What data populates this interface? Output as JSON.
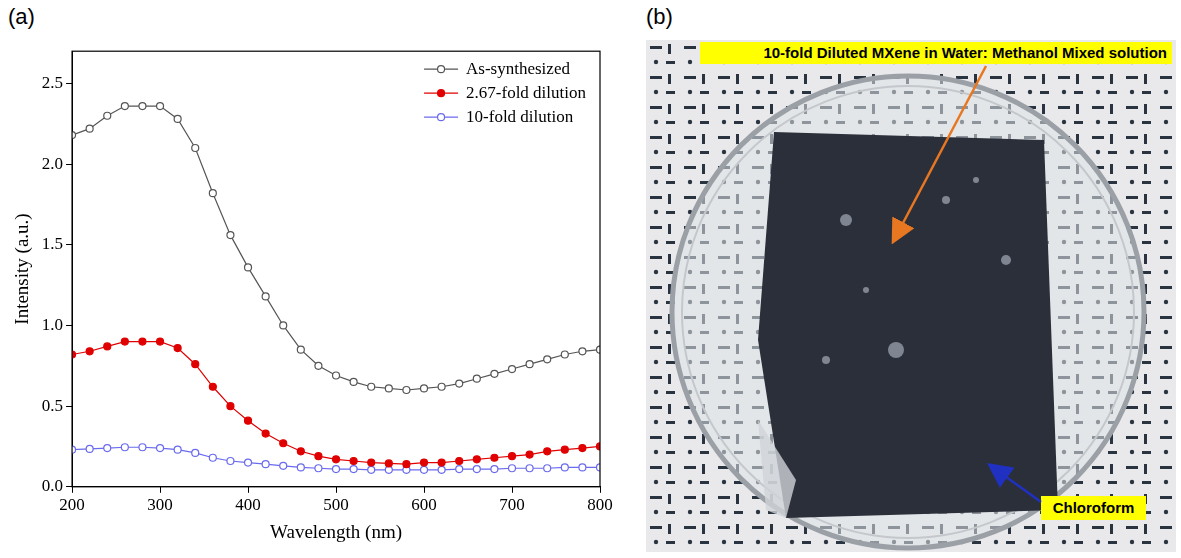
{
  "panel_labels": [
    "(a)",
    "(b)"
  ],
  "chart_data": {
    "type": "line",
    "x_label": "Wavelength (nm)",
    "y_label": "Intensity (a.u.)",
    "x": [
      200,
      220,
      240,
      260,
      280,
      300,
      320,
      340,
      360,
      380,
      400,
      420,
      440,
      460,
      480,
      500,
      520,
      540,
      560,
      580,
      600,
      620,
      640,
      660,
      680,
      700,
      720,
      740,
      760,
      780,
      800
    ],
    "series": [
      {
        "name": "As-synthesized",
        "color": "#555555",
        "marker": "open_circle",
        "values": [
          2.18,
          2.22,
          2.3,
          2.36,
          2.36,
          2.36,
          2.28,
          2.1,
          1.82,
          1.56,
          1.36,
          1.18,
          1.0,
          0.85,
          0.75,
          0.69,
          0.65,
          0.62,
          0.61,
          0.6,
          0.61,
          0.62,
          0.64,
          0.67,
          0.7,
          0.73,
          0.76,
          0.79,
          0.82,
          0.84,
          0.85
        ]
      },
      {
        "name": "2.67-fold dilution",
        "color": "#e00000",
        "marker": "filled_circle",
        "values": [
          0.82,
          0.84,
          0.87,
          0.9,
          0.9,
          0.9,
          0.86,
          0.76,
          0.62,
          0.5,
          0.41,
          0.33,
          0.27,
          0.22,
          0.19,
          0.17,
          0.16,
          0.15,
          0.145,
          0.14,
          0.15,
          0.15,
          0.16,
          0.17,
          0.18,
          0.19,
          0.2,
          0.22,
          0.23,
          0.24,
          0.25
        ]
      },
      {
        "name": "10-fold dilution",
        "color": "#6a6aee",
        "marker": "open_circle",
        "values": [
          0.23,
          0.235,
          0.24,
          0.245,
          0.245,
          0.24,
          0.23,
          0.21,
          0.18,
          0.16,
          0.15,
          0.14,
          0.13,
          0.12,
          0.115,
          0.11,
          0.11,
          0.105,
          0.105,
          0.105,
          0.105,
          0.105,
          0.11,
          0.11,
          0.11,
          0.115,
          0.115,
          0.115,
          0.12,
          0.12,
          0.12
        ]
      }
    ],
    "xlim": [
      200,
      800
    ],
    "xticks": [
      200,
      300,
      400,
      500,
      600,
      700,
      800
    ],
    "ylim": [
      0,
      2.7
    ],
    "yticks": [
      {
        "value": 0,
        "label": "0.0"
      },
      0.5,
      {
        "value": 1,
        "label": "1.0"
      },
      1.5,
      {
        "value": 2,
        "label": "2.0"
      },
      2.5
    ],
    "grid": false,
    "legend": "upper right"
  },
  "photo": {
    "annotations": [
      {
        "text": "10-fold Diluted MXene in Water: Methanol Mixed solution",
        "color": "#e87722"
      },
      {
        "text": "Chloroform",
        "color": "#2030c0"
      }
    ]
  }
}
